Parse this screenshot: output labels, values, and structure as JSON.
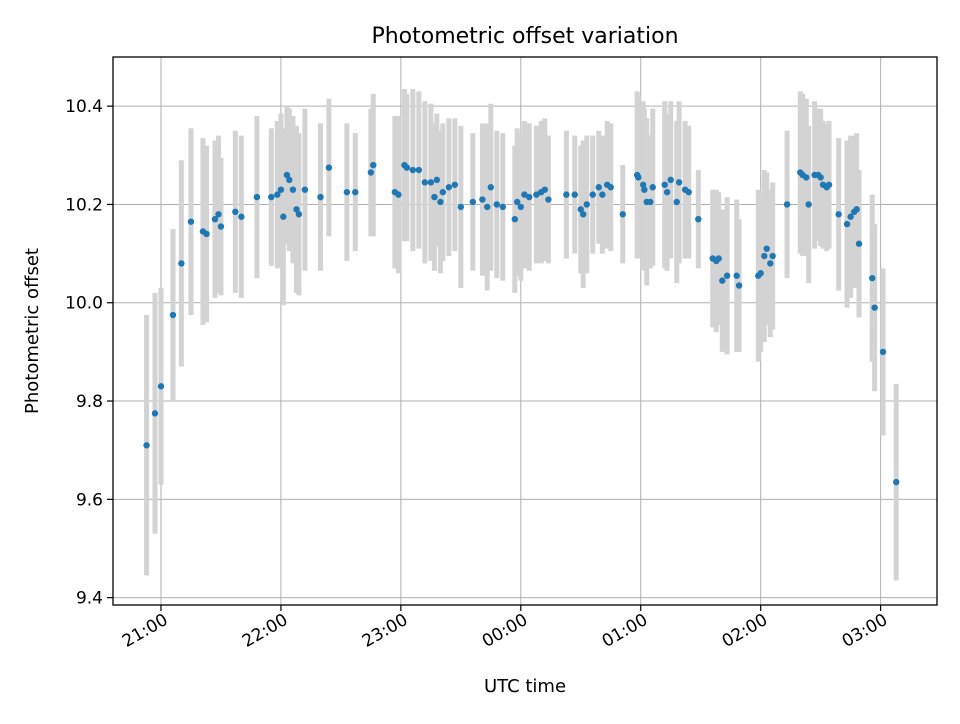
{
  "chart_data": {
    "type": "scatter",
    "title": "Photometric offset variation",
    "xlabel": "UTC time",
    "ylabel": "Photometric offset",
    "x_ticks": [
      "21:00",
      "22:00",
      "23:00",
      "00:00",
      "01:00",
      "02:00",
      "03:00"
    ],
    "y_ticks": [
      "9.4",
      "9.6",
      "9.8",
      "10.0",
      "10.2",
      "10.4"
    ],
    "xlim_hours": [
      20.6,
      27.47
    ],
    "ylim": [
      9.385,
      10.5
    ],
    "grid": true,
    "colors": {
      "point": "#1f77b4",
      "error_bar": "#d3d3d3",
      "grid": "#b0b0b0"
    },
    "points": [
      [
        20.88,
        9.71,
        0.265
      ],
      [
        20.95,
        9.775,
        0.245
      ],
      [
        21.0,
        9.83,
        0.2
      ],
      [
        21.1,
        9.975,
        0.175
      ],
      [
        21.17,
        10.08,
        0.21
      ],
      [
        21.25,
        10.165,
        0.19
      ],
      [
        21.35,
        10.145,
        0.19
      ],
      [
        21.38,
        10.14,
        0.18
      ],
      [
        21.45,
        10.17,
        0.16
      ],
      [
        21.48,
        10.18,
        0.16
      ],
      [
        21.5,
        10.155,
        0.14
      ],
      [
        21.62,
        10.185,
        0.165
      ],
      [
        21.67,
        10.175,
        0.165
      ],
      [
        21.8,
        10.215,
        0.165
      ],
      [
        21.92,
        10.215,
        0.14
      ],
      [
        21.97,
        10.22,
        0.15
      ],
      [
        22.0,
        10.23,
        0.155
      ],
      [
        22.02,
        10.175,
        0.18
      ],
      [
        22.05,
        10.26,
        0.14
      ],
      [
        22.07,
        10.25,
        0.145
      ],
      [
        22.1,
        10.23,
        0.15
      ],
      [
        22.13,
        10.19,
        0.17
      ],
      [
        22.15,
        10.18,
        0.165
      ],
      [
        22.2,
        10.23,
        0.165
      ],
      [
        22.33,
        10.215,
        0.15
      ],
      [
        22.4,
        10.275,
        0.14
      ],
      [
        22.55,
        10.225,
        0.14
      ],
      [
        22.62,
        10.225,
        0.12
      ],
      [
        22.75,
        10.265,
        0.13
      ],
      [
        22.77,
        10.28,
        0.145
      ],
      [
        22.95,
        10.225,
        0.155
      ],
      [
        22.98,
        10.22,
        0.16
      ],
      [
        23.03,
        10.28,
        0.155
      ],
      [
        23.05,
        10.275,
        0.15
      ],
      [
        23.1,
        10.27,
        0.165
      ],
      [
        23.15,
        10.27,
        0.16
      ],
      [
        23.2,
        10.245,
        0.165
      ],
      [
        23.25,
        10.245,
        0.16
      ],
      [
        23.28,
        10.215,
        0.15
      ],
      [
        23.3,
        10.25,
        0.135
      ],
      [
        23.33,
        10.205,
        0.145
      ],
      [
        23.35,
        10.225,
        0.14
      ],
      [
        23.4,
        10.235,
        0.14
      ],
      [
        23.45,
        10.24,
        0.135
      ],
      [
        23.5,
        10.195,
        0.165
      ],
      [
        23.6,
        10.205,
        0.14
      ],
      [
        23.68,
        10.21,
        0.155
      ],
      [
        23.72,
        10.195,
        0.17
      ],
      [
        23.75,
        10.235,
        0.17
      ],
      [
        23.8,
        10.2,
        0.15
      ],
      [
        23.85,
        10.195,
        0.15
      ],
      [
        23.95,
        10.17,
        0.15
      ],
      [
        23.97,
        10.205,
        0.15
      ],
      [
        24.0,
        10.195,
        0.15
      ],
      [
        24.03,
        10.22,
        0.15
      ],
      [
        24.07,
        10.215,
        0.15
      ],
      [
        24.13,
        10.22,
        0.14
      ],
      [
        24.17,
        10.225,
        0.145
      ],
      [
        24.2,
        10.23,
        0.145
      ],
      [
        24.23,
        10.21,
        0.13
      ],
      [
        24.38,
        10.22,
        0.13
      ],
      [
        24.45,
        10.22,
        0.12
      ],
      [
        24.5,
        10.19,
        0.13
      ],
      [
        24.52,
        10.18,
        0.15
      ],
      [
        24.55,
        10.2,
        0.14
      ],
      [
        24.6,
        10.22,
        0.12
      ],
      [
        24.65,
        10.235,
        0.115
      ],
      [
        24.68,
        10.22,
        0.12
      ],
      [
        24.72,
        10.24,
        0.13
      ],
      [
        24.75,
        10.235,
        0.13
      ],
      [
        24.85,
        10.18,
        0.1
      ],
      [
        24.97,
        10.26,
        0.17
      ],
      [
        24.98,
        10.255,
        0.165
      ],
      [
        25.02,
        10.24,
        0.17
      ],
      [
        25.03,
        10.23,
        0.165
      ],
      [
        25.05,
        10.205,
        0.17
      ],
      [
        25.08,
        10.205,
        0.135
      ],
      [
        25.1,
        10.235,
        0.16
      ],
      [
        25.2,
        10.24,
        0.17
      ],
      [
        25.22,
        10.225,
        0.16
      ],
      [
        25.25,
        10.25,
        0.16
      ],
      [
        25.3,
        10.205,
        0.165
      ],
      [
        25.32,
        10.245,
        0.165
      ],
      [
        25.37,
        10.23,
        0.14
      ],
      [
        25.4,
        10.225,
        0.135
      ],
      [
        25.48,
        10.17,
        0.1
      ],
      [
        25.6,
        10.09,
        0.14
      ],
      [
        25.63,
        10.085,
        0.145
      ],
      [
        25.65,
        10.09,
        0.135
      ],
      [
        25.68,
        10.045,
        0.145
      ],
      [
        25.72,
        10.055,
        0.16
      ],
      [
        25.8,
        10.055,
        0.155
      ],
      [
        25.82,
        10.035,
        0.135
      ],
      [
        25.98,
        10.055,
        0.175
      ],
      [
        26.0,
        10.06,
        0.16
      ],
      [
        26.03,
        10.095,
        0.175
      ],
      [
        26.05,
        10.11,
        0.155
      ],
      [
        26.08,
        10.08,
        0.15
      ],
      [
        26.1,
        10.095,
        0.15
      ],
      [
        26.22,
        10.2,
        0.15
      ],
      [
        26.33,
        10.265,
        0.165
      ],
      [
        26.35,
        10.26,
        0.165
      ],
      [
        26.38,
        10.255,
        0.16
      ],
      [
        26.4,
        10.2,
        0.16
      ],
      [
        26.45,
        10.26,
        0.15
      ],
      [
        26.48,
        10.26,
        0.135
      ],
      [
        26.5,
        10.255,
        0.14
      ],
      [
        26.52,
        10.24,
        0.13
      ],
      [
        26.55,
        10.235,
        0.13
      ],
      [
        26.57,
        10.24,
        0.13
      ],
      [
        26.65,
        10.18,
        0.155
      ],
      [
        26.72,
        10.16,
        0.17
      ],
      [
        26.75,
        10.175,
        0.165
      ],
      [
        26.78,
        10.185,
        0.155
      ],
      [
        26.8,
        10.19,
        0.155
      ],
      [
        26.82,
        10.12,
        0.15
      ],
      [
        26.93,
        10.05,
        0.17
      ],
      [
        26.95,
        9.99,
        0.17
      ],
      [
        27.02,
        9.9,
        0.17
      ],
      [
        27.13,
        9.635,
        0.2
      ]
    ]
  }
}
